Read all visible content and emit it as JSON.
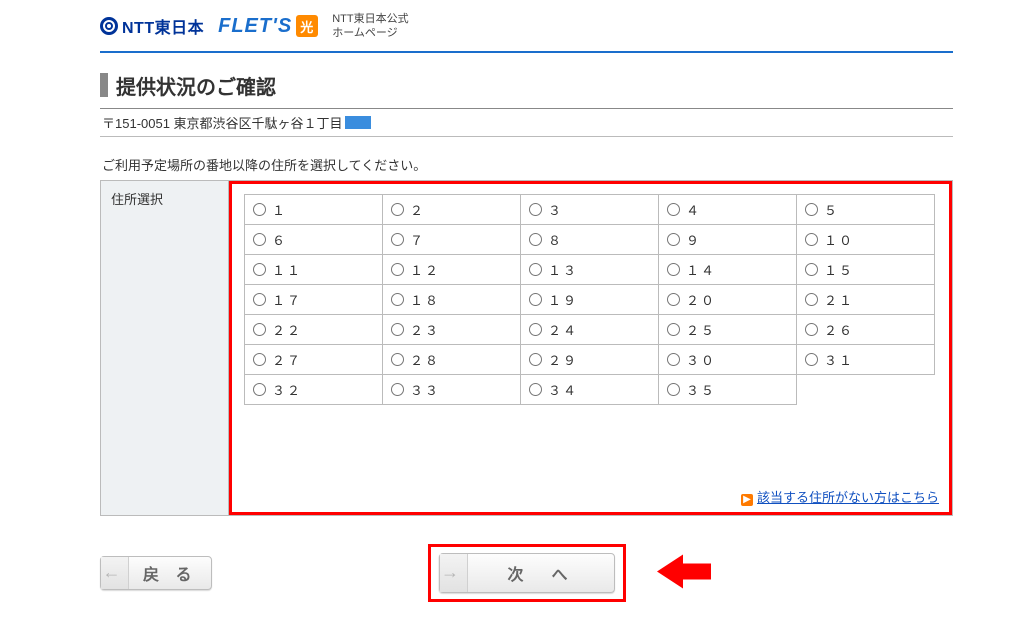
{
  "header": {
    "logo_ntt_text": "NTT東日本",
    "logo_flets_text": "FLET'S",
    "logo_flets_suffix": "光",
    "caption_line1": "NTT東日本公式",
    "caption_line2": "ホームページ"
  },
  "title": "提供状況のご確認",
  "address_prefix": "〒151-0051 東京都渋谷区千駄ヶ谷１丁目",
  "prompt": "ご利用予定場所の番地以降の住所を選択してください。",
  "selector_label": "住所選択",
  "options": [
    [
      "１",
      "２",
      "３",
      "４",
      "５"
    ],
    [
      "６",
      "７",
      "８",
      "９",
      "１０"
    ],
    [
      "１１",
      "１２",
      "１３",
      "１４",
      "１５"
    ],
    [
      "１７",
      "１８",
      "１９",
      "２０",
      "２１"
    ],
    [
      "２２",
      "２３",
      "２４",
      "２５",
      "２６"
    ],
    [
      "２７",
      "２８",
      "２９",
      "３０",
      "３１"
    ],
    [
      "３２",
      "３３",
      "３４",
      "３５",
      null
    ]
  ],
  "no_match_link": "該当する住所がない方はこちら",
  "buttons": {
    "back": "戻 る",
    "next": "次　へ"
  },
  "colors": {
    "accent_red": "#ff0000",
    "link_blue": "#1050c0",
    "brand_blue": "#1a6ecc",
    "brand_orange": "#ff8a00"
  }
}
